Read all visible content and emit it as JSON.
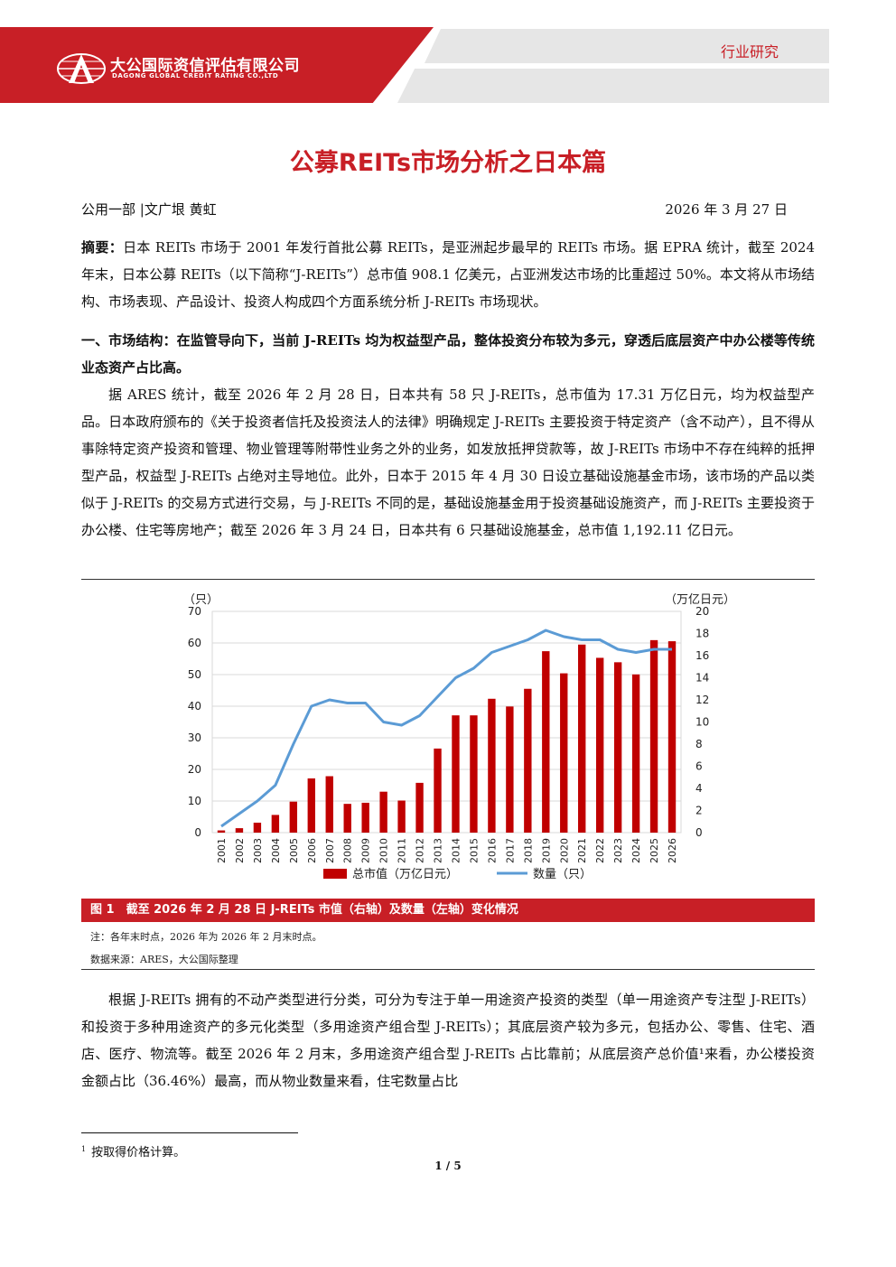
{
  "header": {
    "company_cn": "大公国际资信评估有限公司",
    "company_en": "DAGONG GLOBAL CREDIT RATING CO.,LTD",
    "category": "行业研究",
    "brand_color": "#c81f26"
  },
  "title": "公募REITs市场分析之日本篇",
  "meta": {
    "authors": "公用一部 |文广垠 黄虹",
    "date": "2026 年 3 月 27 日"
  },
  "abstract": {
    "label": "摘要：",
    "text": "日本 REITs 市场于 2001 年发行首批公募 REITs，是亚洲起步最早的 REITs 市场。据 EPRA 统计，截至 2024 年末，日本公募 REITs（以下简称“J-REITs”）总市值 908.1 亿美元，占亚洲发达市场的比重超过 50%。本文将从市场结构、市场表现、产品设计、投资人构成四个方面系统分析 J-REITs 市场现状。"
  },
  "section1": {
    "heading": "一、市场结构：在监管导向下，当前 J-REITs 均为权益型产品，整体投资分布较为多元，穿透后底层资产中办公楼等传统业态资产占比高。",
    "body": "据 ARES 统计，截至 2026 年 2 月 28 日，日本共有 58 只 J-REITs，总市值为 17.31 万亿日元，均为权益型产品。日本政府颁布的《关于投资者信托及投资法人的法律》明确规定 J-REITs 主要投资于特定资产（含不动产），且不得从事除特定资产投资和管理、物业管理等附带性业务之外的业务，如发放抵押贷款等，故 J-REITs 市场中不存在纯粹的抵押型产品，权益型 J-REITs 占绝对主导地位。此外，日本于 2015 年 4 月 30 日设立基础设施基金市场，该市场的产品以类似于 J-REITs 的交易方式进行交易，与 J-REITs 不同的是，基础设施基金用于投资基础设施资产，而 J-REITs 主要投资于办公楼、住宅等房地产；截至 2026 年 3 月 24 日，日本共有 6 只基础设施基金，总市值 1,192.11 亿日元。"
  },
  "figure": {
    "caption": "图 1　截至 2026 年 2 月 28 日 J-REITs 市值（右轴）及数量（左轴）变化情况",
    "note": "注：各年末时点，2026 年为 2026 年 2 月末时点。",
    "source": "数据来源：ARES，大公国际整理"
  },
  "chart_data": {
    "type": "bar",
    "categories": [
      "2001",
      "2002",
      "2003",
      "2004",
      "2005",
      "2006",
      "2007",
      "2008",
      "2009",
      "2010",
      "2011",
      "2012",
      "2013",
      "2014",
      "2015",
      "2016",
      "2017",
      "2018",
      "2019",
      "2020",
      "2021",
      "2022",
      "2023",
      "2024",
      "2025",
      "2026"
    ],
    "left_axis_label": "（只）",
    "right_axis_label": "（万亿日元）",
    "left_ylim": [
      0,
      70
    ],
    "left_ticks": [
      0,
      10,
      20,
      30,
      40,
      50,
      60,
      70
    ],
    "right_ylim": [
      0,
      20
    ],
    "right_ticks": [
      0,
      2,
      4,
      6,
      8,
      10,
      12,
      14,
      16,
      18,
      20
    ],
    "series": [
      {
        "name": "总市值（万亿日元）",
        "type": "bar",
        "axis": "right",
        "color": "#c00000",
        "values": [
          0.2,
          0.4,
          0.9,
          1.6,
          2.8,
          4.9,
          5.1,
          2.6,
          2.7,
          3.7,
          2.9,
          4.5,
          7.6,
          10.6,
          10.6,
          12.1,
          11.4,
          13.0,
          16.4,
          14.4,
          17.0,
          15.8,
          15.4,
          14.3,
          17.4,
          17.3
        ]
      },
      {
        "name": "数量（只）",
        "type": "line",
        "axis": "left",
        "color": "#5b9bd5",
        "values": [
          2,
          6,
          10,
          15,
          28,
          40,
          42,
          41,
          41,
          35,
          34,
          37,
          43,
          49,
          52,
          57,
          59,
          61,
          64,
          62,
          61,
          61,
          58,
          57,
          58,
          58
        ]
      }
    ]
  },
  "section1_cont": "根据 J-REITs 拥有的不动产类型进行分类，可分为专注于单一用途资产投资的类型（单一用途资产专注型 J-REITs）和投资于多种用途资产的多元化类型（多用途资产组合型 J-REITs）；其底层资产较为多元，包括办公、零售、住宅、酒店、医疗、物流等。截至 2026 年 2 月末，多用途资产组合型 J-REITs 占比靠前；从底层资产总价值¹来看，办公楼投资金额占比（36.46%）最高，而从物业数量来看，住宅数量占比",
  "footnote": {
    "mark": "1",
    "text": "按取得价格计算。"
  },
  "page": "1 / 5"
}
